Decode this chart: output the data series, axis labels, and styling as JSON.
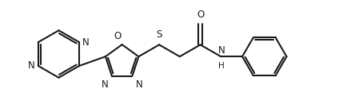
{
  "bg_color": "#ffffff",
  "line_color": "#1a1a1a",
  "line_width": 1.5,
  "font_size": 8.5,
  "figsize": [
    4.34,
    1.41
  ],
  "dpi": 100,
  "xlim": [
    0,
    4.34
  ],
  "ylim": [
    0,
    1.41
  ]
}
